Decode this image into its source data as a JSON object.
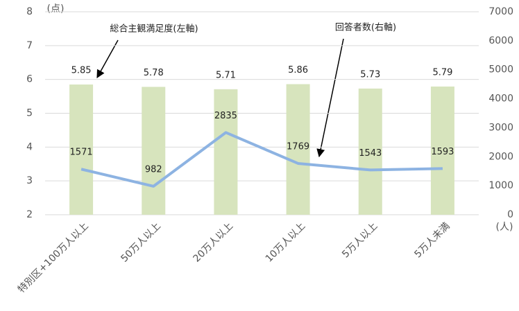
{
  "chart_data": {
    "type": "bar",
    "categories": [
      "特別区+100万人以上",
      "50万人以上",
      "20万人以上",
      "10万人以上",
      "5万人以上",
      "5万人未満"
    ],
    "y_unit_label": "(点)",
    "y2_unit_label": "(人)",
    "annotations": [
      "総合主観満足度(左軸)",
      "回答者数(右軸)"
    ],
    "series": [
      {
        "type": "bar",
        "color": "#d7e4bd",
        "values": [
          5.85,
          5.78,
          5.71,
          5.86,
          5.73,
          5.79
        ]
      },
      {
        "type": "line",
        "axis": "y2",
        "color": "#8db3e2",
        "values": [
          1571,
          982,
          2835,
          1769,
          1543,
          1593
        ]
      }
    ],
    "ylim": [
      2,
      8
    ],
    "yticks": [
      2,
      3,
      4,
      5,
      6,
      7,
      8
    ],
    "y2lim": [
      0,
      7000
    ],
    "y2ticks": [
      0,
      1000,
      2000,
      3000,
      4000,
      5000,
      6000,
      7000
    ],
    "grid": true
  }
}
